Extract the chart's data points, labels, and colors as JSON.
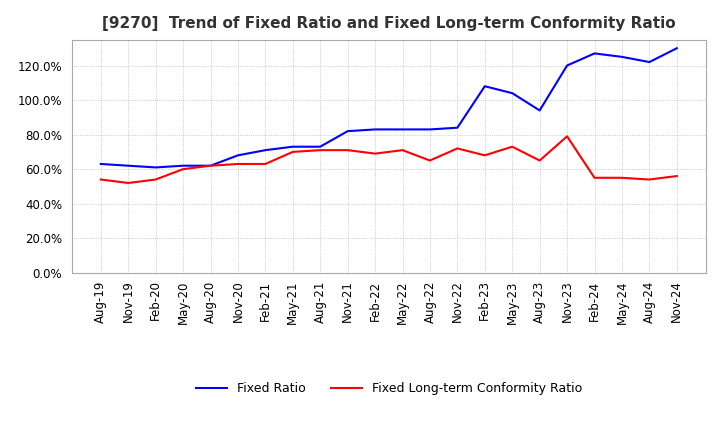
{
  "title": "[9270]  Trend of Fixed Ratio and Fixed Long-term Conformity Ratio",
  "fixed_ratio": {
    "dates": [
      "Aug-19",
      "Nov-19",
      "Feb-20",
      "May-20",
      "Aug-20",
      "Nov-20",
      "Feb-21",
      "May-21",
      "Aug-21",
      "Nov-21",
      "Feb-22",
      "May-22",
      "Aug-22",
      "Nov-22",
      "Feb-23",
      "May-23",
      "Aug-23",
      "Nov-23",
      "Feb-24",
      "May-24",
      "Aug-24",
      "Nov-24"
    ],
    "values": [
      63,
      62,
      61,
      62,
      62,
      68,
      71,
      73,
      73,
      82,
      83,
      83,
      83,
      84,
      108,
      104,
      94,
      120,
      127,
      125,
      122,
      130
    ]
  },
  "fixed_lt_ratio": {
    "dates": [
      "Aug-19",
      "Nov-19",
      "Feb-20",
      "May-20",
      "Aug-20",
      "Nov-20",
      "Feb-21",
      "May-21",
      "Aug-21",
      "Nov-21",
      "Feb-22",
      "May-22",
      "Aug-22",
      "Nov-22",
      "Feb-23",
      "May-23",
      "Aug-23",
      "Nov-23",
      "Feb-24",
      "May-24",
      "Aug-24",
      "Nov-24"
    ],
    "values": [
      54,
      52,
      54,
      60,
      62,
      63,
      63,
      70,
      71,
      71,
      69,
      71,
      65,
      72,
      68,
      73,
      65,
      79,
      55,
      55,
      54,
      56
    ]
  },
  "fixed_ratio_color": "#0000FF",
  "fixed_lt_ratio_color": "#FF0000",
  "background_color": "#FFFFFF",
  "plot_bg_color": "#FFFFFF",
  "grid_color": "#AAAAAA",
  "ylim": [
    0,
    135
  ],
  "yticks": [
    0,
    20,
    40,
    60,
    80,
    100,
    120
  ],
  "legend_labels": [
    "Fixed Ratio",
    "Fixed Long-term Conformity Ratio"
  ],
  "title_fontsize": 11,
  "axis_fontsize": 8.5
}
